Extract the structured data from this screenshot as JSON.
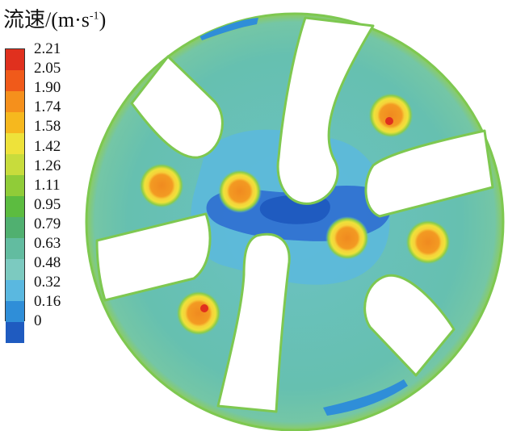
{
  "legend": {
    "title_main": "流速/(m·s",
    "title_sup": "-1",
    "title_close": ")",
    "ticks": [
      "2.21",
      "2.05",
      "1.90",
      "1.74",
      "1.58",
      "1.42",
      "1.26",
      "1.11",
      "0.95",
      "0.79",
      "0.63",
      "0.48",
      "0.32",
      "0.16",
      "0"
    ],
    "colors": [
      "#e0301e",
      "#f05a1a",
      "#f5901c",
      "#f6b81e",
      "#eee23a",
      "#c8dc3c",
      "#90cc38",
      "#5cbc40",
      "#50b070",
      "#62bca0",
      "#7ccac0",
      "#5ab8e0",
      "#2f8ed8",
      "#1f5bc0"
    ]
  },
  "colors": {
    "domain_bg": "#66c0b0",
    "domain_light": "#7cc8bc",
    "low_speed": "#2f6fd0",
    "very_low": "#1f5bc0",
    "mid_low": "#4aa8e0",
    "edge_green": "#7ec850",
    "hot_core": "#f08a20",
    "hot_ring": "#f6d23a",
    "hot_outer": "#8ccc48",
    "baffle": "#ffffff"
  }
}
